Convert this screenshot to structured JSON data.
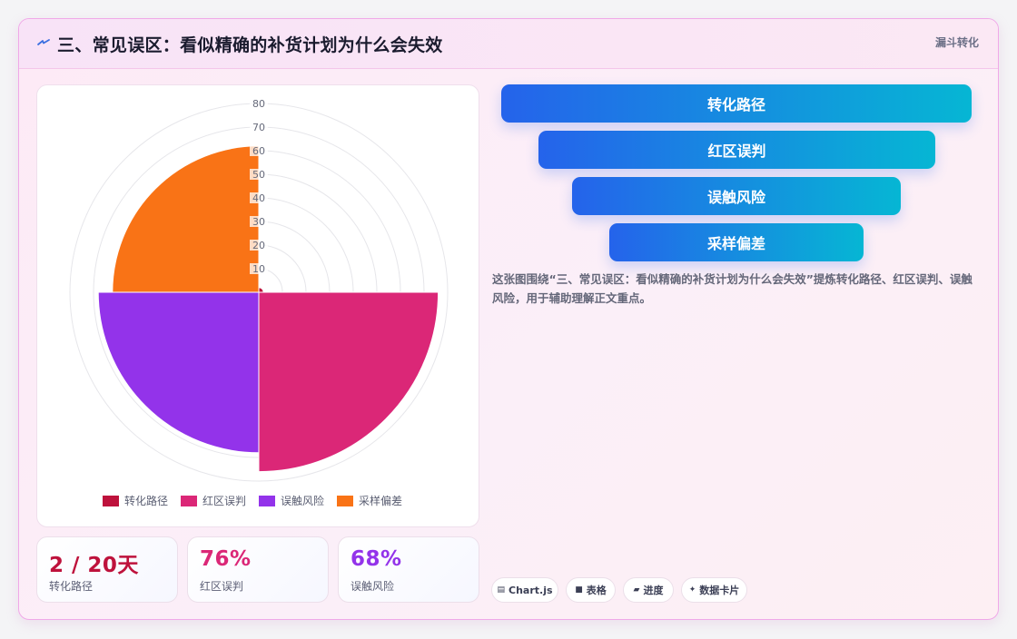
{
  "header": {
    "icon": "lightning-icon",
    "title": "三、常见误区：看似精确的补货计划为什么会失效",
    "tag": "漏斗转化"
  },
  "chart_data": {
    "type": "polarArea",
    "categories": [
      "转化路径",
      "红区误判",
      "误触风险",
      "采样偏差"
    ],
    "values": [
      2,
      76,
      68,
      62
    ],
    "colors": [
      "#be123c",
      "#db2777",
      "#9333ea",
      "#f97316"
    ],
    "r_ticks": [
      10,
      20,
      30,
      40,
      50,
      60,
      70,
      80
    ],
    "r_range": [
      0,
      80
    ],
    "legend_position": "bottom",
    "grid": true
  },
  "stats": [
    {
      "value": "2 / 20天",
      "label": "转化路径",
      "color": "#be123c"
    },
    {
      "value": "76%",
      "label": "红区误判",
      "color": "#db2777"
    },
    {
      "value": "68%",
      "label": "误触风险",
      "color": "#9333ea"
    }
  ],
  "funnel": [
    "转化路径",
    "红区误判",
    "误触风险",
    "采样偏差"
  ],
  "description": "这张图围绕“三、常见误区：看似精确的补货计划为什么会失效”提炼转化路径、红区误判、误触风险，用于辅助理解正文重点。",
  "chips": [
    {
      "icon": "chart-icon",
      "glyph": "▤",
      "label": "Chart.js"
    },
    {
      "icon": "table-icon",
      "glyph": "■",
      "label": "表格"
    },
    {
      "icon": "progress-icon",
      "glyph": "▰",
      "label": "进度"
    },
    {
      "icon": "sparkle-icon",
      "glyph": "✦",
      "label": "数据卡片"
    }
  ]
}
